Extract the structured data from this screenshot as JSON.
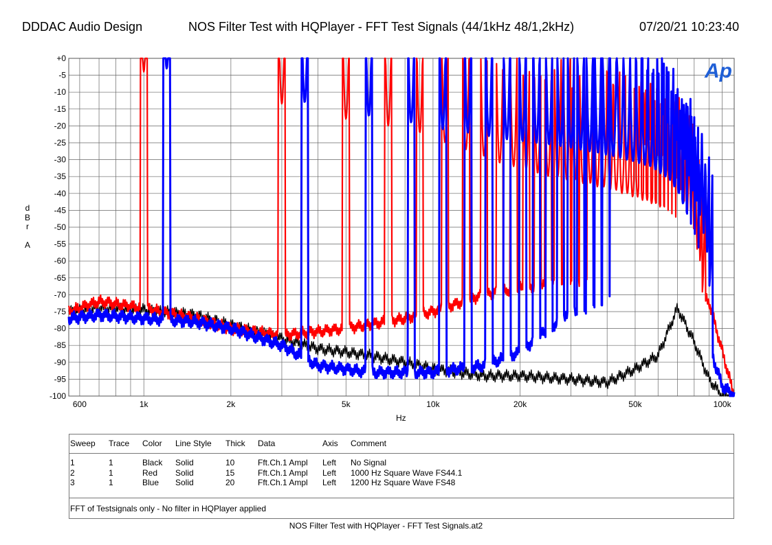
{
  "header": {
    "left": "DDDAC Audio Design",
    "center": "NOS Filter Test with HQPlayer - FFT Test Signals (44/1kHz 48/1,2kHz)",
    "right": "07/20/21 10:23:40"
  },
  "chart_data": {
    "type": "line",
    "xlabel": "Hz",
    "ylabel": [
      "d",
      "B",
      "r",
      "",
      "A"
    ],
    "xscale": "log",
    "xlim": [
      550,
      110000
    ],
    "ylim": [
      -100,
      0
    ],
    "grid": true,
    "x_ticks": [
      {
        "v": 600,
        "label": "600"
      },
      {
        "v": 1000,
        "label": "1k"
      },
      {
        "v": 2000,
        "label": "2k"
      },
      {
        "v": 5000,
        "label": "5k"
      },
      {
        "v": 10000,
        "label": "10k"
      },
      {
        "v": 20000,
        "label": "20k"
      },
      {
        "v": 50000,
        "label": "50k"
      },
      {
        "v": 100000,
        "label": "100k"
      }
    ],
    "y_ticks": [
      {
        "v": 0,
        "label": "+0"
      },
      {
        "v": -5,
        "label": "-5"
      },
      {
        "v": -10,
        "label": "-10"
      },
      {
        "v": -15,
        "label": "-15"
      },
      {
        "v": -20,
        "label": "-20"
      },
      {
        "v": -25,
        "label": "-25"
      },
      {
        "v": -30,
        "label": "-30"
      },
      {
        "v": -35,
        "label": "-35"
      },
      {
        "v": -40,
        "label": "-40"
      },
      {
        "v": -45,
        "label": "-45"
      },
      {
        "v": -50,
        "label": "-50"
      },
      {
        "v": -55,
        "label": "-55"
      },
      {
        "v": -60,
        "label": "-60"
      },
      {
        "v": -65,
        "label": "-65"
      },
      {
        "v": -70,
        "label": "-70"
      },
      {
        "v": -75,
        "label": "-75"
      },
      {
        "v": -80,
        "label": "-80"
      },
      {
        "v": -85,
        "label": "-85"
      },
      {
        "v": -90,
        "label": "-90"
      },
      {
        "v": -95,
        "label": "-95"
      },
      {
        "v": -100,
        "label": "-100"
      }
    ],
    "series": [
      {
        "color": "#000000",
        "floor": [
          [
            550,
            -75
          ],
          [
            700,
            -74
          ],
          [
            1000,
            -74.5
          ],
          [
            1500,
            -76
          ],
          [
            2000,
            -79
          ],
          [
            3000,
            -83
          ],
          [
            4000,
            -86
          ],
          [
            5000,
            -87
          ],
          [
            6000,
            -88
          ],
          [
            8000,
            -90
          ],
          [
            10000,
            -92
          ],
          [
            15000,
            -94
          ],
          [
            20000,
            -94
          ],
          [
            30000,
            -95
          ],
          [
            40000,
            -96
          ],
          [
            50000,
            -92
          ],
          [
            60000,
            -88
          ],
          [
            70000,
            -74
          ],
          [
            80000,
            -84
          ],
          [
            90000,
            -95
          ],
          [
            100000,
            -100
          ],
          [
            110000,
            -100
          ]
        ],
        "peaks": []
      },
      {
        "color": "#ff0000",
        "floor": [
          [
            550,
            -75
          ],
          [
            700,
            -72
          ],
          [
            1000,
            -74
          ],
          [
            1500,
            -77
          ],
          [
            2000,
            -80
          ],
          [
            3000,
            -82
          ],
          [
            5000,
            -80
          ],
          [
            8000,
            -77
          ],
          [
            10000,
            -75
          ],
          [
            15000,
            -70
          ],
          [
            20000,
            -68
          ],
          [
            30000,
            -66
          ],
          [
            40000,
            -66
          ],
          [
            50000,
            -66
          ],
          [
            70000,
            -67
          ],
          [
            90000,
            -72
          ],
          [
            110000,
            -100
          ]
        ],
        "peaks": [
          [
            1000,
            -4
          ],
          [
            3000,
            -13.5
          ],
          [
            5000,
            -18
          ],
          [
            7000,
            -20
          ],
          [
            9000,
            -22
          ],
          [
            11000,
            -25
          ],
          [
            13000,
            -27
          ],
          [
            15000,
            -29
          ],
          [
            17000,
            -31
          ],
          [
            19000,
            -32
          ],
          [
            21000,
            -33
          ],
          [
            23000,
            -34
          ],
          [
            25000,
            -35
          ],
          [
            27000,
            -35
          ],
          [
            29000,
            -36
          ],
          [
            31000,
            -36
          ],
          [
            33000,
            -37
          ],
          [
            35000,
            -37
          ],
          [
            37000,
            -38
          ],
          [
            39000,
            -38
          ],
          [
            41000,
            -39
          ],
          [
            43000,
            -39
          ],
          [
            45000,
            -40
          ],
          [
            47000,
            -40
          ],
          [
            49000,
            -41
          ],
          [
            51000,
            -41
          ],
          [
            53000,
            -42
          ],
          [
            55000,
            -42
          ],
          [
            57000,
            -43
          ],
          [
            59000,
            -43
          ],
          [
            61000,
            -44
          ],
          [
            63000,
            -44
          ],
          [
            65000,
            -45
          ],
          [
            67000,
            -46
          ],
          [
            69000,
            -47
          ],
          [
            71000,
            -48
          ],
          [
            73000,
            -50
          ],
          [
            75000,
            -52
          ],
          [
            77000,
            -55
          ],
          [
            79000,
            -58
          ],
          [
            81000,
            -62
          ],
          [
            83000,
            -66
          ],
          [
            85000,
            -70
          ]
        ]
      },
      {
        "color": "#0000ff",
        "floor": [
          [
            550,
            -77
          ],
          [
            700,
            -76
          ],
          [
            1000,
            -77
          ],
          [
            1500,
            -78
          ],
          [
            2000,
            -80
          ],
          [
            3000,
            -85
          ],
          [
            4000,
            -91
          ],
          [
            5000,
            -92
          ],
          [
            6000,
            -93
          ],
          [
            8000,
            -93
          ],
          [
            10000,
            -93
          ],
          [
            12000,
            -92
          ],
          [
            15000,
            -91
          ],
          [
            20000,
            -87
          ],
          [
            25000,
            -80
          ],
          [
            30000,
            -76
          ],
          [
            35000,
            -73
          ],
          [
            40000,
            -71
          ],
          [
            45000,
            -71
          ],
          [
            50000,
            -72
          ],
          [
            60000,
            -73
          ],
          [
            70000,
            -74
          ],
          [
            80000,
            -78
          ],
          [
            90000,
            -85
          ],
          [
            100000,
            -97
          ],
          [
            110000,
            -100
          ]
        ],
        "peaks": [
          [
            1200,
            -3
          ],
          [
            3600,
            -13
          ],
          [
            6000,
            -17
          ],
          [
            8400,
            -19
          ],
          [
            10800,
            -21
          ],
          [
            13200,
            -22
          ],
          [
            15600,
            -23
          ],
          [
            18000,
            -24
          ],
          [
            20400,
            -24.5
          ],
          [
            22800,
            -25
          ],
          [
            25200,
            -25.5
          ],
          [
            27600,
            -26
          ],
          [
            30000,
            -26.5
          ],
          [
            32400,
            -27
          ],
          [
            34800,
            -27.5
          ],
          [
            37200,
            -28
          ],
          [
            39600,
            -28.5
          ],
          [
            42000,
            -29
          ],
          [
            44400,
            -29.5
          ],
          [
            46800,
            -30
          ],
          [
            49200,
            -30.5
          ],
          [
            51600,
            -31
          ],
          [
            54000,
            -31.5
          ],
          [
            56400,
            -32
          ],
          [
            58800,
            -33
          ],
          [
            61200,
            -34
          ],
          [
            63600,
            -35
          ],
          [
            66000,
            -36
          ],
          [
            68400,
            -38
          ],
          [
            70800,
            -40
          ],
          [
            73200,
            -43
          ],
          [
            75600,
            -46
          ],
          [
            78000,
            -49
          ],
          [
            80400,
            -52
          ],
          [
            82800,
            -56
          ],
          [
            85200,
            -60
          ],
          [
            87600,
            -64
          ],
          [
            90000,
            -68
          ]
        ]
      }
    ],
    "x_label_extra": "Hz"
  },
  "legend": {
    "headers": [
      "Sweep",
      "Trace",
      "Color",
      "Line Style",
      "Thick",
      "Data",
      "Axis",
      "Comment"
    ],
    "rows": [
      [
        "1",
        "1",
        "Black",
        "Solid",
        "10",
        "Fft.Ch.1 Ampl",
        "Left",
        "No Signal"
      ],
      [
        "2",
        "1",
        "Red",
        "Solid",
        "15",
        "Fft.Ch.1 Ampl",
        "Left",
        "1000 Hz Square Wave FS44.1"
      ],
      [
        "3",
        "1",
        "Blue",
        "Solid",
        "20",
        "Fft.Ch.1 Ampl",
        "Left",
        "1200 Hz Square Wave FS48"
      ]
    ],
    "comment": "FFT of Testsignals only - No filter in HQPlayer applied"
  },
  "footer": "NOS Filter Test with HQPlayer - FFT Test Signals.at2",
  "logo": {
    "text": "Ap",
    "color": "#1f5fd6"
  }
}
